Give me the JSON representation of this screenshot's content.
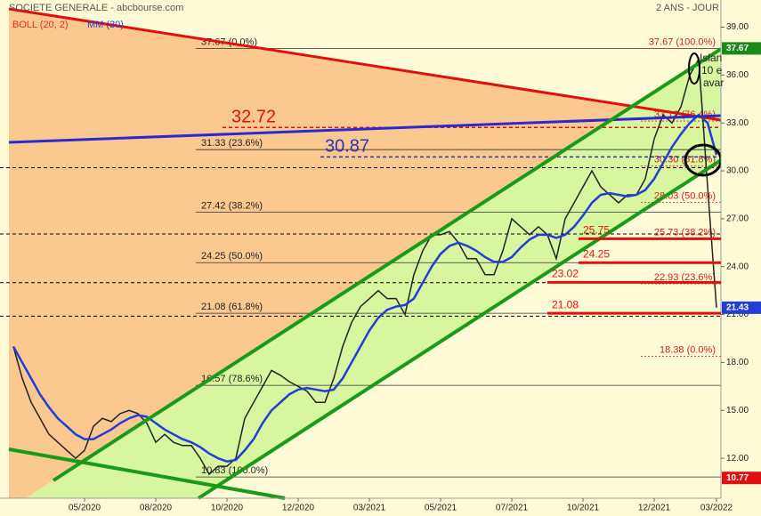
{
  "chart_data": {
    "type": "line",
    "title": "SOCIETE GENERALE - abcbourse.com",
    "subtitle": "2 ANS - JOUR",
    "legend": [
      {
        "text": "BOLL (20, 2)",
        "color": "#e03020"
      }
    ],
    "categories": [
      null,
      null,
      null,
      null,
      null,
      null,
      null,
      null,
      "05/2020",
      null,
      null,
      null,
      null,
      null,
      null,
      null,
      "08/2020",
      null,
      null,
      null,
      null,
      null,
      null,
      null,
      "10/2020",
      null,
      null,
      null,
      null,
      null,
      null,
      null,
      "12/2020",
      null,
      null,
      null,
      null,
      null,
      null,
      null,
      "03/2021",
      null,
      null,
      null,
      null,
      null,
      null,
      null,
      "05/2021",
      null,
      null,
      null,
      null,
      null,
      null,
      null,
      "07/2021",
      null,
      null,
      null,
      null,
      null,
      null,
      null,
      "10/2021",
      null,
      null,
      null,
      null,
      null,
      null,
      null,
      "12/2021",
      null,
      null,
      null,
      null,
      null,
      null,
      "03/2022"
    ],
    "series": [
      {
        "color": "#222222",
        "values": [
          19,
          17,
          15.5,
          14.5,
          13.5,
          13,
          12.5,
          12,
          12.5,
          14,
          14.5,
          14.3,
          14.8,
          15,
          14.8,
          14.2,
          13,
          13.5,
          13,
          12.8,
          12.8,
          12,
          11,
          11.5,
          11.5,
          12,
          14.5,
          15.5,
          16.5,
          17.5,
          17.2,
          16.8,
          16.5,
          16.2,
          15.5,
          15.5,
          17,
          19,
          20.5,
          21.5,
          22,
          22.5,
          22,
          22,
          21,
          23.5,
          25,
          26,
          26,
          26.2,
          25.5,
          24.5,
          24.5,
          23.5,
          23.5,
          25,
          27,
          26.5,
          26,
          26.5,
          26,
          24.5,
          27,
          28,
          29,
          30,
          29,
          28.5,
          28,
          28.5,
          28.5,
          29.5,
          32,
          33.5,
          33,
          34,
          36,
          37,
          29,
          21.43
        ]
      },
      {
        "name": "MM (30)",
        "color": "#1f3fd8",
        "values": [
          19,
          18,
          17,
          16,
          15.2,
          14.5,
          14,
          13.5,
          13.2,
          13.2,
          13.5,
          13.8,
          14.2,
          14.5,
          14.7,
          14.6,
          14.2,
          13.8,
          13.5,
          13.2,
          13,
          12.7,
          12.3,
          12,
          11.8,
          11.9,
          12.5,
          13.2,
          14.2,
          15,
          15.5,
          16,
          16.3,
          16.4,
          16.3,
          16.2,
          16.3,
          17,
          18,
          19,
          20,
          20.8,
          21.3,
          21.5,
          21.6,
          22,
          23,
          24,
          24.8,
          25.3,
          25.5,
          25.3,
          25,
          24.6,
          24.3,
          24.3,
          24.6,
          25.2,
          25.7,
          26,
          26,
          25.8,
          26,
          26.5,
          27.2,
          28,
          28.5,
          28.6,
          28.5,
          28.4,
          28.5,
          28.8,
          29.5,
          30.5,
          31.5,
          32.3,
          33,
          33.5,
          33,
          31
        ]
      }
    ],
    "ylim": [
      9.5,
      40.7
    ],
    "yticks": [
      {
        "value": 12,
        "label": "12.00"
      },
      {
        "value": 15,
        "label": "15.00"
      },
      {
        "value": 18,
        "label": "18.00"
      },
      {
        "value": 21,
        "label": "21.00"
      },
      {
        "value": 24,
        "label": "24.00"
      },
      {
        "value": 27,
        "label": "27.00"
      },
      {
        "value": 30,
        "label": "30.00"
      },
      {
        "value": 33,
        "label": "33.00"
      },
      {
        "value": 36,
        "label": "36.00"
      },
      {
        "value": 39,
        "label": "39.00"
      }
    ],
    "fib_levels": [
      {
        "value": 37.67,
        "label": "37.67  (0.0%)"
      },
      {
        "value": 31.33,
        "label": "31.33  (23.6%)"
      },
      {
        "value": 27.42,
        "label": "27.42  (38.2%)"
      },
      {
        "value": 24.25,
        "label": "24.25  (50.0%)"
      },
      {
        "value": 21.08,
        "label": "21.08  (61.8%)"
      },
      {
        "value": 16.57,
        "label": "16.57  (78.6%)"
      },
      {
        "value": 10.83,
        "label": "10.83  (100.0%)"
      }
    ],
    "fib_levels_2": [
      {
        "value": 37.67,
        "label": "37.67  (100.0%)"
      },
      {
        "value": 33.12,
        "label": "33.12  (76.4%)"
      },
      {
        "value": 30.3,
        "label": "30.30  (61.8%)"
      },
      {
        "value": 28.03,
        "label": "28.03  (50.0%)"
      },
      {
        "value": 25.73,
        "label": "25.73  (38.2%)"
      },
      {
        "value": 22.93,
        "label": "22.93  (23.6%)"
      },
      {
        "value": 18.38,
        "label": "18.38  (0.0%)"
      }
    ],
    "red_levels": [
      25.75,
      24.25,
      23.02,
      21.08
    ],
    "dashed_levels": [
      30.2,
      26.05,
      23.0,
      20.9
    ],
    "marked_levels": [
      {
        "value": 32.72,
        "color": "#e01010"
      },
      {
        "value": 30.87,
        "color": "#3030c0"
      }
    ],
    "price_tags": [
      {
        "value": 37.67,
        "color": "#1a8a1a"
      },
      {
        "value": 21.43,
        "color": "#1f3fd8"
      },
      {
        "value": 10.77,
        "color": "#e01010"
      }
    ],
    "annotation": [
      "Islan",
      "10 e",
      "avar"
    ]
  }
}
